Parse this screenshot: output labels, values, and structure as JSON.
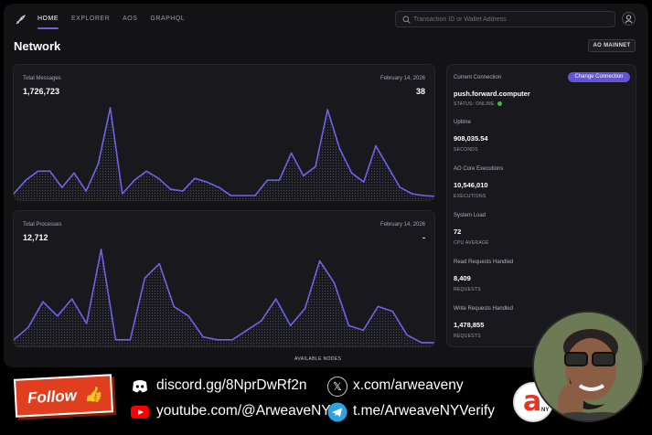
{
  "nav": {
    "items": [
      "HOME",
      "EXPLORER",
      "AOS",
      "GRAPHQL"
    ],
    "active_index": 0
  },
  "search": {
    "placeholder": "Transaction ID or Wallet Address"
  },
  "page": {
    "title": "Network",
    "network_button": "AO MAINNET"
  },
  "messages_card": {
    "label": "Total Messages",
    "total": "1,726,723",
    "date": "February 14, 2026",
    "value": "38",
    "chart_data": {
      "type": "area",
      "values": [
        5,
        20,
        30,
        30,
        12,
        28,
        8,
        38,
        100,
        5,
        20,
        30,
        22,
        10,
        8,
        22,
        18,
        12,
        3,
        3,
        3,
        20,
        20,
        50,
        25,
        35,
        98,
        55,
        28,
        18,
        58,
        35,
        12,
        5,
        3,
        2
      ]
    }
  },
  "processes_card": {
    "label": "Total Processes",
    "total": "12,712",
    "date": "February 14, 2026",
    "value": "-",
    "chart_data": {
      "type": "area",
      "values": [
        5,
        18,
        45,
        30,
        48,
        22,
        100,
        5,
        5,
        70,
        85,
        40,
        30,
        8,
        5,
        5,
        15,
        25,
        48,
        20,
        38,
        88,
        65,
        20,
        15,
        40,
        35,
        10,
        2,
        2
      ]
    }
  },
  "connection": {
    "label": "Current Connection",
    "change_button": "Change Connection",
    "host": "push.forward.computer",
    "status": "STATUS: ONLINE",
    "status_color": "#3fb950"
  },
  "stats": [
    {
      "key": "Uptime",
      "value": "908,035.54",
      "unit": "SECONDS"
    },
    {
      "key": "AO Core Executions",
      "value": "10,546,010",
      "unit": "EXECUTIONS"
    },
    {
      "key": "System Load",
      "value": "72",
      "unit": "CPU AVERAGE"
    },
    {
      "key": "Read Requests Handled",
      "value": "8,409",
      "unit": "REQUESTS"
    },
    {
      "key": "Write Requests Handled",
      "value": "1,478,855",
      "unit": "REQUESTS"
    }
  ],
  "available_nodes_label": "AVAILABLE NODES",
  "banner": {
    "follow": "Follow",
    "discord": "discord.gg/8NprDwRf2n",
    "x": "x.com/arweaveny",
    "youtube": "youtube.com/@ArweaveNY",
    "telegram": "t.me/ArweaveNYVerify",
    "logo_letter": "a",
    "logo_sub": "NY"
  },
  "colors": {
    "accent": "#6d5fe0",
    "chart_line": "#6f62ea",
    "follow_red": "#e03f1f"
  }
}
